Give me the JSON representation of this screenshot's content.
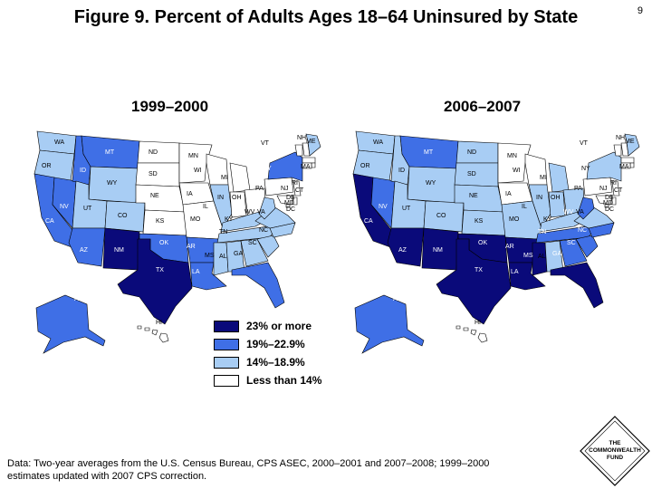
{
  "page_number": "9",
  "title": "Figure 9. Percent of Adults Ages 18–64 Uninsured by State",
  "colors": {
    "c23": "#0a0a7a",
    "c19": "#3f6fe6",
    "c14": "#a8cdf4",
    "c0": "#ffffff",
    "outline": "#000000"
  },
  "legend": [
    {
      "key": "c23",
      "label": "23% or more"
    },
    {
      "key": "c19",
      "label": "19%–22.9%"
    },
    {
      "key": "c14",
      "label": "14%–18.9%"
    },
    {
      "key": "c0",
      "label": "Less than 14%"
    }
  ],
  "maps": [
    {
      "period": "1999–2000",
      "states": {
        "WA": "c14",
        "OR": "c14",
        "CA": "c19",
        "NV": "c19",
        "ID": "c19",
        "MT": "c19",
        "WY": "c14",
        "UT": "c14",
        "AZ": "c19",
        "NM": "c23",
        "CO": "c14",
        "ND": "c0",
        "SD": "c0",
        "NE": "c0",
        "KS": "c0",
        "OK": "c19",
        "TX": "c23",
        "MN": "c0",
        "IA": "c0",
        "MO": "c0",
        "AR": "c19",
        "LA": "c19",
        "WI": "c0",
        "IL": "c14",
        "MI": "c0",
        "IN": "c0",
        "OH": "c0",
        "KY": "c14",
        "TN": "c14",
        "MS": "c14",
        "AL": "c14",
        "GA": "c14",
        "FL": "c19",
        "SC": "c14",
        "NC": "c14",
        "VA": "c14",
        "WV": "c14",
        "PA": "c0",
        "NY": "c19",
        "VT": "c0",
        "NH": "c0",
        "ME": "c14",
        "MA": "c0",
        "RI": "c0",
        "CT": "c0",
        "NJ": "c0",
        "DE": "c0",
        "MD": "c0",
        "DC": "c0",
        "AK": "c19",
        "HI": "c0"
      }
    },
    {
      "period": "2006–2007",
      "states": {
        "WA": "c14",
        "OR": "c14",
        "CA": "c23",
        "NV": "c19",
        "ID": "c14",
        "MT": "c19",
        "WY": "c14",
        "UT": "c14",
        "AZ": "c23",
        "NM": "c23",
        "CO": "c14",
        "ND": "c14",
        "SD": "c14",
        "NE": "c14",
        "KS": "c14",
        "OK": "c23",
        "TX": "c23",
        "MN": "c0",
        "IA": "c0",
        "MO": "c14",
        "AR": "c23",
        "LA": "c23",
        "WI": "c0",
        "IL": "c14",
        "MI": "c14",
        "IN": "c14",
        "OH": "c14",
        "KY": "c14",
        "TN": "c19",
        "MS": "c23",
        "AL": "c14",
        "GA": "c19",
        "FL": "c23",
        "SC": "c19",
        "NC": "c19",
        "VA": "c14",
        "WV": "c19",
        "PA": "c0",
        "NY": "c14",
        "VT": "c0",
        "NH": "c0",
        "ME": "c14",
        "MA": "c0",
        "RI": "c0",
        "CT": "c0",
        "NJ": "c0",
        "DE": "c0",
        "MD": "c0",
        "DC": "c0",
        "AK": "c19",
        "HI": "c0"
      }
    }
  ],
  "source": "Data: Two-year averages from the U.S. Census Bureau, CPS ASEC, 2000–2001 and 2007–2008; 1999–2000 estimates updated with 2007 CPS correction.",
  "logo": {
    "line1": "THE",
    "line2": "COMMONWEALTH",
    "line3": "FUND"
  }
}
